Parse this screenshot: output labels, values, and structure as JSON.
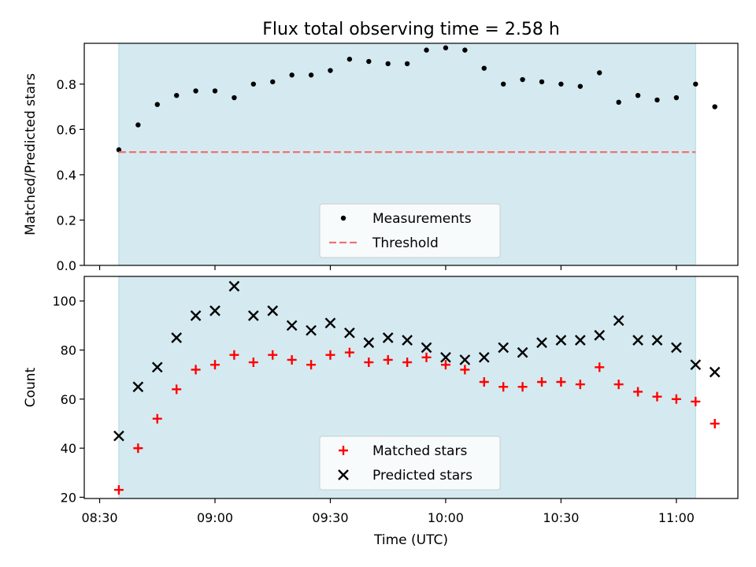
{
  "chart_data": [
    {
      "type": "scatter",
      "title": "Flux total observing time = 2.58 h",
      "xlabel": "",
      "ylabel": "Matched/Predicted stars",
      "ylim": [
        0,
        0.98
      ],
      "yticks": [
        "0.0",
        "0.2",
        "0.4",
        "0.6",
        "0.8"
      ],
      "legend_position": "bottom-center",
      "shaded_span": {
        "start": "08:35",
        "end": "11:05",
        "color": "#d4eaf0"
      },
      "series": [
        {
          "name": "Measurements",
          "marker": "dot",
          "color": "#000000",
          "points": [
            [
              "08:35",
              0.51
            ],
            [
              "08:40",
              0.62
            ],
            [
              "08:45",
              0.71
            ],
            [
              "08:50",
              0.75
            ],
            [
              "08:55",
              0.77
            ],
            [
              "09:00",
              0.77
            ],
            [
              "09:05",
              0.74
            ],
            [
              "09:10",
              0.8
            ],
            [
              "09:15",
              0.81
            ],
            [
              "09:20",
              0.84
            ],
            [
              "09:25",
              0.84
            ],
            [
              "09:30",
              0.86
            ],
            [
              "09:35",
              0.91
            ],
            [
              "09:40",
              0.9
            ],
            [
              "09:45",
              0.89
            ],
            [
              "09:50",
              0.89
            ],
            [
              "09:55",
              0.95
            ],
            [
              "10:00",
              0.96
            ],
            [
              "10:05",
              0.95
            ],
            [
              "10:10",
              0.87
            ],
            [
              "10:15",
              0.8
            ],
            [
              "10:20",
              0.82
            ],
            [
              "10:25",
              0.81
            ],
            [
              "10:30",
              0.8
            ],
            [
              "10:35",
              0.79
            ],
            [
              "10:40",
              0.85
            ],
            [
              "10:45",
              0.72
            ],
            [
              "10:50",
              0.75
            ],
            [
              "10:55",
              0.73
            ],
            [
              "11:00",
              0.74
            ],
            [
              "11:05",
              0.8
            ],
            [
              "11:10",
              0.7
            ]
          ]
        },
        {
          "name": "Threshold",
          "marker": "dashed-line",
          "color": "#f07373",
          "points": [
            [
              "08:35",
              0.5
            ],
            [
              "11:05",
              0.5
            ]
          ]
        }
      ]
    },
    {
      "type": "scatter",
      "title": "",
      "xlabel": "Time (UTC)",
      "ylabel": "Count",
      "ylim": [
        19.5,
        110
      ],
      "yticks": [
        "20",
        "40",
        "60",
        "80",
        "100"
      ],
      "xticks": [
        "08:30",
        "09:00",
        "09:30",
        "10:00",
        "10:30",
        "11:00"
      ],
      "legend_position": "bottom-center",
      "shaded_span": {
        "start": "08:35",
        "end": "11:05",
        "color": "#d4eaf0"
      },
      "series": [
        {
          "name": "Matched stars",
          "marker": "plus",
          "color": "#ff0000",
          "points": [
            [
              "08:35",
              23
            ],
            [
              "08:40",
              40
            ],
            [
              "08:45",
              52
            ],
            [
              "08:50",
              64
            ],
            [
              "08:55",
              72
            ],
            [
              "09:00",
              74
            ],
            [
              "09:05",
              78
            ],
            [
              "09:10",
              75
            ],
            [
              "09:15",
              78
            ],
            [
              "09:20",
              76
            ],
            [
              "09:25",
              74
            ],
            [
              "09:30",
              78
            ],
            [
              "09:35",
              79
            ],
            [
              "09:40",
              75
            ],
            [
              "09:45",
              76
            ],
            [
              "09:50",
              75
            ],
            [
              "09:55",
              77
            ],
            [
              "10:00",
              74
            ],
            [
              "10:05",
              72
            ],
            [
              "10:10",
              67
            ],
            [
              "10:15",
              65
            ],
            [
              "10:20",
              65
            ],
            [
              "10:25",
              67
            ],
            [
              "10:30",
              67
            ],
            [
              "10:35",
              66
            ],
            [
              "10:40",
              73
            ],
            [
              "10:45",
              66
            ],
            [
              "10:50",
              63
            ],
            [
              "10:55",
              61
            ],
            [
              "11:00",
              60
            ],
            [
              "11:05",
              59
            ],
            [
              "11:10",
              50
            ]
          ]
        },
        {
          "name": "Predicted stars",
          "marker": "x",
          "color": "#000000",
          "points": [
            [
              "08:35",
              45
            ],
            [
              "08:40",
              65
            ],
            [
              "08:45",
              73
            ],
            [
              "08:50",
              85
            ],
            [
              "08:55",
              94
            ],
            [
              "09:00",
              96
            ],
            [
              "09:05",
              106
            ],
            [
              "09:10",
              94
            ],
            [
              "09:15",
              96
            ],
            [
              "09:20",
              90
            ],
            [
              "09:25",
              88
            ],
            [
              "09:30",
              91
            ],
            [
              "09:35",
              87
            ],
            [
              "09:40",
              83
            ],
            [
              "09:45",
              85
            ],
            [
              "09:50",
              84
            ],
            [
              "09:55",
              81
            ],
            [
              "10:00",
              77
            ],
            [
              "10:05",
              76
            ],
            [
              "10:10",
              77
            ],
            [
              "10:15",
              81
            ],
            [
              "10:20",
              79
            ],
            [
              "10:25",
              83
            ],
            [
              "10:30",
              84
            ],
            [
              "10:35",
              84
            ],
            [
              "10:40",
              86
            ],
            [
              "10:45",
              92
            ],
            [
              "10:50",
              84
            ],
            [
              "10:55",
              84
            ],
            [
              "11:00",
              81
            ],
            [
              "11:05",
              74
            ],
            [
              "11:10",
              71
            ]
          ]
        }
      ]
    }
  ]
}
